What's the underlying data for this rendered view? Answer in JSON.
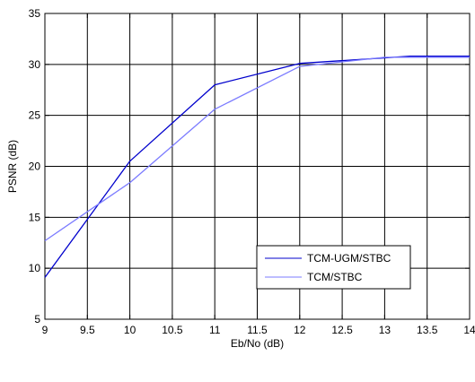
{
  "chart_data": {
    "type": "line",
    "title": "",
    "xlabel": "Eb/No (dB)",
    "ylabel": "PSNR (dB)",
    "xlim": [
      9,
      14
    ],
    "ylim": [
      5,
      35
    ],
    "x_ticks": [
      9,
      9.5,
      10,
      10.5,
      11,
      11.5,
      12,
      12.5,
      13,
      13.5,
      14
    ],
    "y_ticks": [
      5,
      10,
      15,
      20,
      25,
      30,
      35
    ],
    "x_tick_labels": [
      "9",
      "9.5",
      "10",
      "10.5",
      "11",
      "11.5",
      "12",
      "12.5",
      "13",
      "13.5",
      "14"
    ],
    "y_tick_labels": [
      "5",
      "10",
      "15",
      "20",
      "25",
      "30",
      "35"
    ],
    "grid": true,
    "legend_position": "lower-right",
    "series": [
      {
        "name": "TCM-UGM/STBC",
        "color": "#0000cc",
        "points": [
          [
            9,
            9.1
          ],
          [
            10,
            20.5
          ],
          [
            11,
            28.0
          ],
          [
            12,
            30.1
          ],
          [
            13.3,
            30.8
          ],
          [
            14,
            30.8
          ]
        ]
      },
      {
        "name": "TCM/STBC",
        "color": "#7b7bff",
        "points": [
          [
            9,
            12.7
          ],
          [
            10,
            18.4
          ],
          [
            11,
            25.6
          ],
          [
            12,
            29.8
          ],
          [
            13,
            30.7
          ],
          [
            14,
            30.7
          ]
        ]
      }
    ]
  }
}
